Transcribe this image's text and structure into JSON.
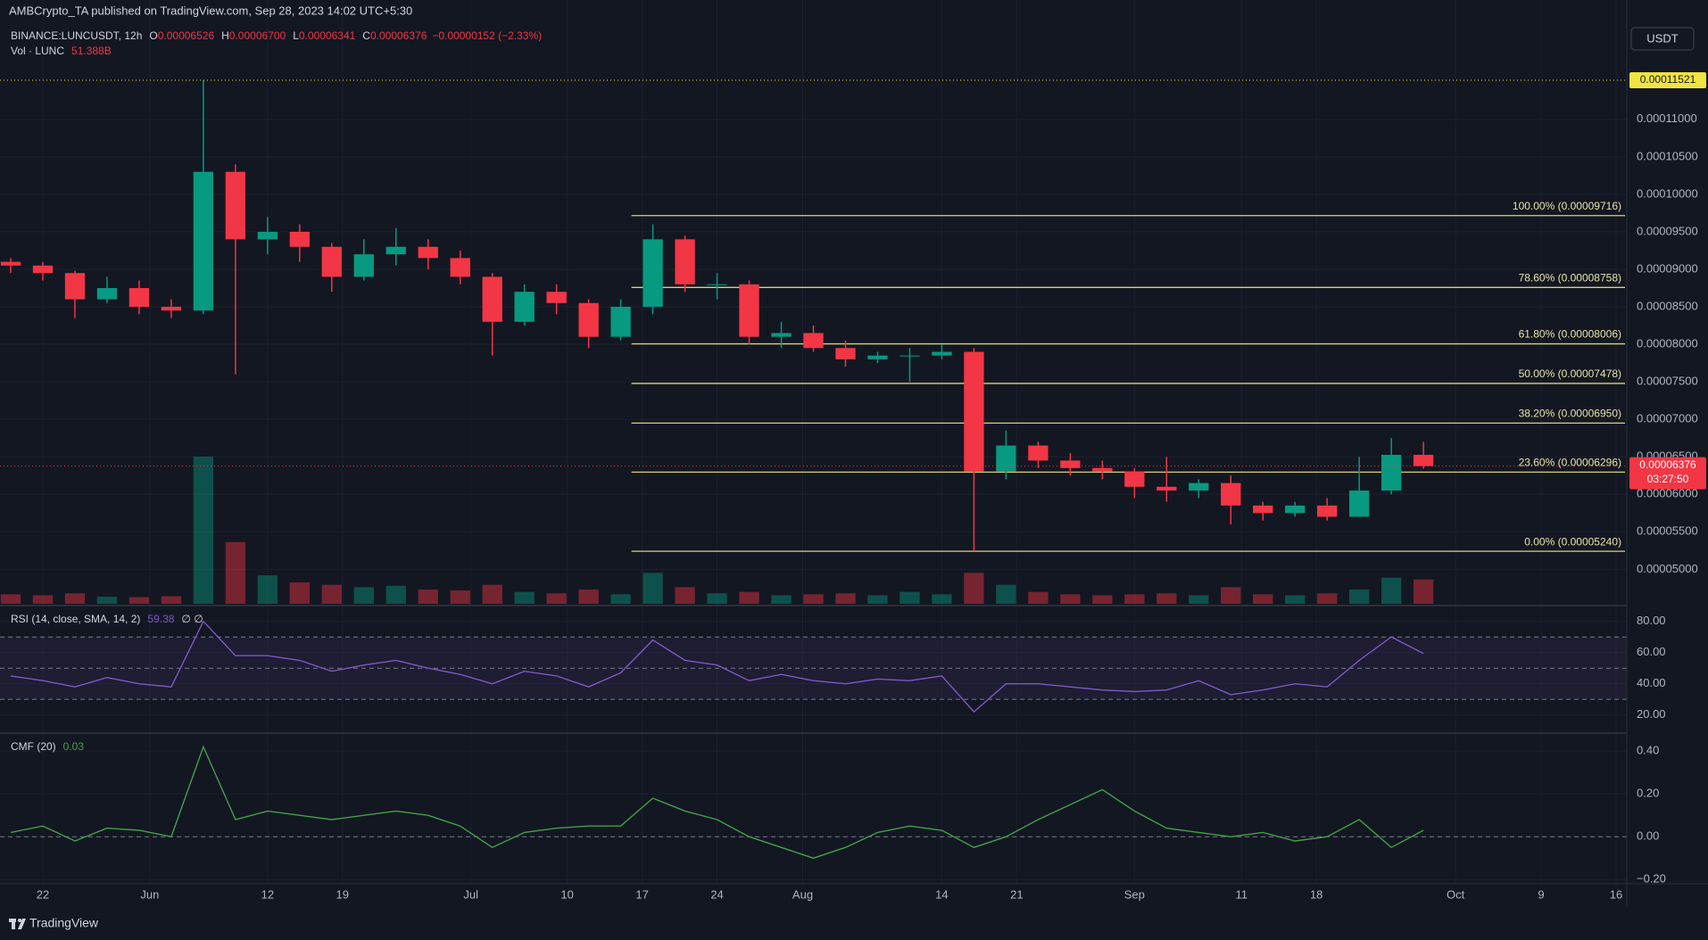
{
  "header": {
    "published": "AMBCrypto_TA published on TradingView.com, Sep 28, 2023 14:02 UTC+5:30",
    "currency_button": "USDT",
    "footer": "TradingView"
  },
  "chart_data": [
    {
      "type": "candlestick",
      "legend": {
        "symbol": "BINANCE:LUNCUSDT, 12h",
        "fields": [
          {
            "key": "O",
            "value": "0.00006526"
          },
          {
            "key": "H",
            "value": "0.00006700"
          },
          {
            "key": "L",
            "value": "0.00006341"
          },
          {
            "key": "C",
            "value": "0.00006376"
          }
        ],
        "change": "−0.00000152 (−2.33%)"
      },
      "countdown": "03:27:50",
      "x": [
        139,
        142,
        145,
        148,
        151,
        154,
        157,
        160,
        163,
        166,
        169,
        172,
        175,
        178,
        181,
        184,
        187,
        190,
        193,
        196,
        199,
        202,
        205,
        208,
        211,
        214,
        217,
        220,
        223,
        226,
        229,
        232,
        235,
        238,
        241,
        244,
        247,
        250,
        253,
        256,
        259,
        262,
        265,
        268,
        271
      ],
      "open": [
        9.1e-05,
        9.05e-05,
        8.95e-05,
        8.6e-05,
        8.75e-05,
        8.5e-05,
        8.45e-05,
        0.000103,
        9.4e-05,
        9.5e-05,
        9.3e-05,
        8.9e-05,
        9.2e-05,
        9.3e-05,
        9.15e-05,
        8.9e-05,
        8.3e-05,
        8.7e-05,
        8.55e-05,
        8.1e-05,
        8.5e-05,
        9.4e-05,
        8.8e-05,
        8.8e-05,
        8.1e-05,
        8.15e-05,
        7.95e-05,
        7.8e-05,
        7.85e-05,
        7.85e-05,
        7.9e-05,
        6.3e-05,
        6.65e-05,
        6.45e-05,
        6.35e-05,
        6.3e-05,
        6.1e-05,
        6.05e-05,
        6.15e-05,
        5.85e-05,
        5.75e-05,
        5.85e-05,
        5.7e-05,
        6.05e-05,
        6.526e-05
      ],
      "high": [
        9.15e-05,
        9.1e-05,
        8.98e-05,
        8.9e-05,
        8.85e-05,
        8.6e-05,
        0.00011521,
        0.000104,
        9.7e-05,
        9.6e-05,
        9.35e-05,
        9.4e-05,
        9.55e-05,
        9.4e-05,
        9.25e-05,
        8.95e-05,
        8.8e-05,
        8.8e-05,
        8.6e-05,
        8.6e-05,
        9.6e-05,
        9.45e-05,
        8.95e-05,
        8.85e-05,
        8.3e-05,
        8.25e-05,
        8.05e-05,
        7.9e-05,
        7.95e-05,
        8e-05,
        7.95e-05,
        6.85e-05,
        6.7e-05,
        6.55e-05,
        6.45e-05,
        6.35e-05,
        6.5e-05,
        6.2e-05,
        6.25e-05,
        5.9e-05,
        5.9e-05,
        5.95e-05,
        6.5e-05,
        6.75e-05,
        6.7e-05
      ],
      "low": [
        8.95e-05,
        8.85e-05,
        8.35e-05,
        8.55e-05,
        8.4e-05,
        8.35e-05,
        8.4e-05,
        7.6e-05,
        9.2e-05,
        9.1e-05,
        8.7e-05,
        8.85e-05,
        9.05e-05,
        9e-05,
        8.8e-05,
        7.85e-05,
        8.25e-05,
        8.4e-05,
        7.95e-05,
        8.05e-05,
        8.4e-05,
        8.7e-05,
        8.6e-05,
        8e-05,
        7.95e-05,
        7.9e-05,
        7.7e-05,
        7.75e-05,
        7.5e-05,
        7.8e-05,
        5.24e-05,
        6.2e-05,
        6.35e-05,
        6.25e-05,
        6.2e-05,
        5.95e-05,
        5.9e-05,
        5.95e-05,
        5.6e-05,
        5.65e-05,
        5.7e-05,
        5.65e-05,
        5.7e-05,
        6e-05,
        6.341e-05
      ],
      "close": [
        9.05e-05,
        8.95e-05,
        8.6e-05,
        8.75e-05,
        8.5e-05,
        8.45e-05,
        0.000103,
        9.4e-05,
        9.5e-05,
        9.3e-05,
        8.9e-05,
        9.2e-05,
        9.3e-05,
        9.15e-05,
        8.9e-05,
        8.3e-05,
        8.7e-05,
        8.55e-05,
        8.1e-05,
        8.5e-05,
        9.4e-05,
        8.8e-05,
        8.8e-05,
        8.1e-05,
        8.15e-05,
        7.95e-05,
        7.8e-05,
        7.85e-05,
        7.85e-05,
        7.9e-05,
        6.3e-05,
        6.65e-05,
        6.45e-05,
        6.35e-05,
        6.3e-05,
        6.1e-05,
        6.05e-05,
        6.15e-05,
        5.85e-05,
        5.75e-05,
        5.85e-05,
        5.7e-05,
        6.05e-05,
        6.526e-05,
        6.376e-05
      ],
      "up_color": "#089981",
      "down_color": "#f23645",
      "volume": {
        "name": "Vol · LUNC",
        "legend_value": "51.388B",
        "values": [
          20,
          18,
          22,
          15,
          14,
          16,
          310,
          130,
          60,
          45,
          40,
          35,
          38,
          30,
          28,
          40,
          25,
          22,
          30,
          20,
          65,
          35,
          22,
          25,
          18,
          20,
          22,
          18,
          25,
          20,
          65,
          40,
          25,
          20,
          18,
          20,
          22,
          18,
          35,
          20,
          18,
          22,
          30,
          55,
          51.388
        ]
      },
      "fib": {
        "x_start": 197,
        "color": "#d9d46e",
        "levels": [
          {
            "value": 9.716e-05,
            "label": "100.00% (0.00009716)"
          },
          {
            "value": 8.758e-05,
            "label": "78.60% (0.00008758)"
          },
          {
            "value": 8.006e-05,
            "label": "61.80% (0.00008006)"
          },
          {
            "value": 7.478e-05,
            "label": "50.00% (0.00007478)"
          },
          {
            "value": 6.95e-05,
            "label": "38.20% (0.00006950)"
          },
          {
            "value": 6.296e-05,
            "label": "23.60% (0.00006296)"
          },
          {
            "value": 5.24e-05,
            "label": "0.00% (0.00005240)"
          }
        ]
      },
      "xlim": [
        138,
        290
      ],
      "xticks": [
        {
          "value": 142,
          "label": "22"
        },
        {
          "value": 152,
          "label": "Jun"
        },
        {
          "value": 163,
          "label": "12"
        },
        {
          "value": 170,
          "label": "19"
        },
        {
          "value": 182,
          "label": "Jul"
        },
        {
          "value": 191,
          "label": "10"
        },
        {
          "value": 198,
          "label": "17"
        },
        {
          "value": 205,
          "label": "24"
        },
        {
          "value": 213,
          "label": "Aug"
        },
        {
          "value": 226,
          "label": "14"
        },
        {
          "value": 233,
          "label": "21"
        },
        {
          "value": 244,
          "label": "Sep"
        },
        {
          "value": 254,
          "label": "11"
        },
        {
          "value": 261,
          "label": "18"
        },
        {
          "value": 274,
          "label": "Oct"
        },
        {
          "value": 282,
          "label": "9"
        },
        {
          "value": 289,
          "label": "16"
        }
      ],
      "ylim": [
        4.54e-05,
        0.0001227
      ],
      "yticks": [
        {
          "value": 0.00011,
          "label": "0.00011000"
        },
        {
          "value": 0.000105,
          "label": "0.00010500"
        },
        {
          "value": 0.0001,
          "label": "0.00010000"
        },
        {
          "value": 9.5e-05,
          "label": "0.00009500"
        },
        {
          "value": 9e-05,
          "label": "0.00009000"
        },
        {
          "value": 8.5e-05,
          "label": "0.00008500"
        },
        {
          "value": 8e-05,
          "label": "0.00008000"
        },
        {
          "value": 7.5e-05,
          "label": "0.00007500"
        },
        {
          "value": 7e-05,
          "label": "0.00007000"
        },
        {
          "value": 6.5e-05,
          "label": "0.00006500"
        },
        {
          "value": 6e-05,
          "label": "0.00006000"
        },
        {
          "value": 5.5e-05,
          "label": "0.00005500"
        },
        {
          "value": 5e-05,
          "label": "0.00005000"
        }
      ],
      "grid": true
    },
    {
      "type": "line",
      "title": "RSI (14, close, SMA, 14, 2)",
      "flags": "∅ ∅",
      "color": "#7e57c2",
      "values": [
        45,
        42,
        38,
        44,
        40,
        38,
        80,
        58,
        58,
        55,
        48,
        52,
        55,
        50,
        46,
        40,
        48,
        45,
        38,
        47,
        68,
        55,
        52,
        42,
        46,
        42,
        40,
        43,
        42,
        45,
        22,
        40,
        40,
        38,
        36,
        35,
        36,
        42,
        33,
        36,
        40,
        38,
        55,
        70,
        59.38
      ],
      "bands": [
        70,
        50,
        30
      ],
      "ylim": [
        9.5,
        89
      ],
      "yticks": [
        {
          "value": 80,
          "label": "80.00"
        },
        {
          "value": 60,
          "label": "60.00"
        },
        {
          "value": 40,
          "label": "40.00"
        },
        {
          "value": 20,
          "label": "20.00"
        }
      ],
      "grid": true
    },
    {
      "type": "line",
      "title": "CMF (20)",
      "color": "#43a047",
      "values": [
        0.02,
        0.05,
        -0.02,
        0.04,
        0.03,
        0.0,
        0.42,
        0.08,
        0.12,
        0.1,
        0.08,
        0.1,
        0.12,
        0.1,
        0.05,
        -0.05,
        0.02,
        0.04,
        0.05,
        0.05,
        0.18,
        0.12,
        0.08,
        0.0,
        -0.05,
        -0.1,
        -0.05,
        0.02,
        0.05,
        0.03,
        -0.05,
        0.0,
        0.08,
        0.15,
        0.22,
        0.12,
        0.04,
        0.02,
        0.0,
        0.02,
        -0.02,
        0.0,
        0.08,
        -0.05,
        0.03
      ],
      "bands": [
        0
      ],
      "ylim": [
        -0.22,
        0.476
      ],
      "yticks": [
        {
          "value": 0.4,
          "label": "0.40"
        },
        {
          "value": 0.2,
          "label": "0.20"
        },
        {
          "value": 0,
          "label": "0.00"
        },
        {
          "value": -0.2,
          "label": "−0.20"
        }
      ],
      "grid": true
    }
  ]
}
